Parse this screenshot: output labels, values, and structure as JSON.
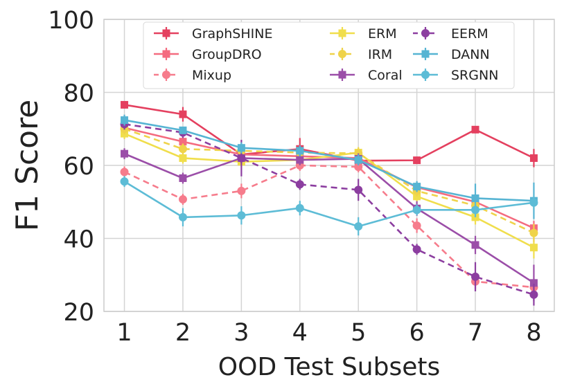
{
  "chart_data": {
    "type": "line",
    "title": "",
    "xlabel": "OOD Test Subsets",
    "ylabel": "F1 Score",
    "x": [
      1,
      2,
      3,
      4,
      5,
      6,
      7,
      8
    ],
    "xlim": [
      0.65,
      8.35
    ],
    "ylim": [
      20,
      100
    ],
    "yticks": [
      20,
      40,
      60,
      80,
      100
    ],
    "grid": true,
    "legend_position": "top",
    "series": [
      {
        "name": "GraphSHINE",
        "values": [
          76.6,
          74.0,
          63.0,
          64.5,
          61.3,
          61.4,
          69.8,
          62.0
        ],
        "errors": [
          1.0,
          2.0,
          1.5,
          3.0,
          1.0,
          0.8,
          0.8,
          2.5
        ],
        "color": "#e4405f",
        "dash": "solid",
        "marker": "square"
      },
      {
        "name": "GroupDRO",
        "values": [
          70.3,
          66.5,
          63.0,
          62.5,
          62.0,
          54.0,
          50.0,
          42.8
        ],
        "errors": [
          1.2,
          1.5,
          1.2,
          1.2,
          1.2,
          1.5,
          2.0,
          2.0
        ],
        "color": "#f46b7f",
        "dash": "solid",
        "marker": "square"
      },
      {
        "name": "Mixup",
        "values": [
          58.2,
          50.7,
          53.0,
          60.0,
          59.6,
          43.5,
          28.2,
          26.6
        ],
        "errors": [
          1.5,
          1.5,
          2.0,
          1.5,
          1.5,
          2.0,
          2.0,
          1.5
        ],
        "color": "#f67c8c",
        "dash": "dashed",
        "marker": "circle"
      },
      {
        "name": "ERM",
        "values": [
          68.7,
          62.0,
          61.0,
          61.5,
          63.5,
          51.5,
          45.8,
          37.5
        ],
        "errors": [
          1.5,
          1.5,
          1.5,
          1.5,
          1.5,
          1.5,
          2.0,
          3.0
        ],
        "color": "#f0de4c",
        "dash": "solid",
        "marker": "square"
      },
      {
        "name": "IRM",
        "values": [
          70.0,
          64.5,
          64.0,
          63.5,
          63.3,
          53.0,
          49.0,
          41.5
        ],
        "errors": [
          1.5,
          1.5,
          1.5,
          1.5,
          1.5,
          1.5,
          1.5,
          2.5
        ],
        "color": "#efd34a",
        "dash": "dashed",
        "marker": "circle"
      },
      {
        "name": "Coral",
        "values": [
          63.2,
          56.5,
          62.0,
          61.5,
          61.8,
          48.2,
          38.2,
          27.8
        ],
        "errors": [
          1.5,
          1.5,
          1.5,
          1.5,
          1.5,
          2.0,
          2.5,
          5.0
        ],
        "color": "#9b4ea8",
        "dash": "solid",
        "marker": "square"
      },
      {
        "name": "EERM",
        "values": [
          71.3,
          69.0,
          62.0,
          54.8,
          53.3,
          37.0,
          29.5,
          24.6
        ],
        "errors": [
          1.5,
          1.5,
          5.0,
          1.5,
          3.0,
          1.5,
          4.0,
          3.0
        ],
        "color": "#8c3ea0",
        "dash": "dashed",
        "marker": "circle"
      },
      {
        "name": "DANN",
        "values": [
          72.4,
          69.6,
          64.8,
          64.0,
          61.5,
          54.2,
          51.0,
          50.3
        ],
        "errors": [
          1.5,
          1.0,
          1.5,
          1.5,
          1.5,
          1.5,
          4.0,
          5.0
        ],
        "color": "#56b4d3",
        "dash": "solid",
        "marker": "square"
      },
      {
        "name": "SRGNN",
        "values": [
          55.6,
          45.8,
          46.3,
          48.3,
          43.3,
          47.8,
          47.8,
          49.8
        ],
        "errors": [
          1.5,
          2.5,
          2.5,
          2.0,
          2.5,
          1.5,
          2.0,
          2.0
        ],
        "color": "#5dbcd6",
        "dash": "solid",
        "marker": "circle"
      }
    ]
  }
}
